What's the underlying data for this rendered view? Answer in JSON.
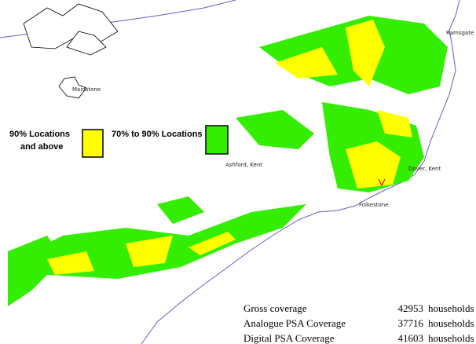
{
  "places": [
    {
      "label": "Ramsgate"
    },
    {
      "label": "Maidstone"
    },
    {
      "label": "Ashford, Kent"
    },
    {
      "label": "Dover, Kent"
    },
    {
      "label": "Folkestone"
    }
  ],
  "legend": [
    {
      "label_lines": [
        "90% Locations",
        "and above"
      ],
      "color": "#ffff00"
    },
    {
      "label_lines": [
        "70% to 90% Locations"
      ],
      "color": "#33ee00"
    }
  ],
  "coverage": {
    "rows": [
      {
        "label": "Gross coverage",
        "value": 42953,
        "unit": "households"
      },
      {
        "label": "Analogue PSA Coverage",
        "value": 37716,
        "unit": "households"
      },
      {
        "label": "Digital PSA Coverage",
        "value": 41603,
        "unit": "households"
      }
    ]
  }
}
